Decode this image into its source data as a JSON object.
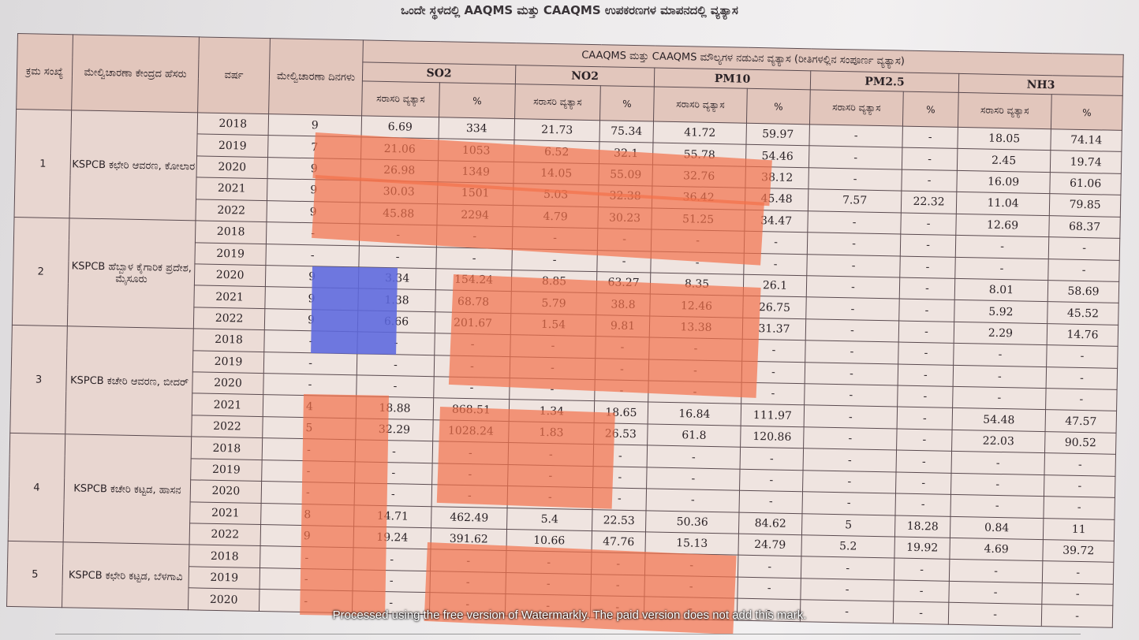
{
  "title": "ಒಂದೇ ಸ್ಥಳದಲ್ಲಿ AAQMS ಮತ್ತು CAAQMS ಉಪಕರಣಗಳ ಮಾಪನದಲ್ಲಿ ವ್ಯತ್ಯಾಸ",
  "headers": {
    "sl_no": "ಕ್ರಮ ಸಂಖ್ಯೆ",
    "station_name": "ಮೇಲ್ವಿಚಾರಣಾ ಕೇಂದ್ರದ ಹೆಸರು",
    "year": "ವರ್ಷ",
    "monitoring_days": "ಮೇಲ್ವಿಚಾರಣಾ ದಿನಗಳು",
    "group": "CAAQMS ಮತ್ತು CAAQMS ಮೌಲ್ಯಗಳ ನಡುವಿನ ವ್ಯತ್ಯಾಸ (ರೀತಿಗಳಲ್ಲಿನ ಸಂಪೂರ್ಣ ವ್ಯತ್ಯಾಸ)",
    "pollutants": [
      "SO2",
      "NO2",
      "PM10",
      "PM2.5",
      "NH3"
    ],
    "avg_diff": "ಸರಾಸರಿ ವ್ಯತ್ಯಾಸ",
    "percent": "%"
  },
  "stations": [
    {
      "sl": "1",
      "name": "KSPCB ಕಛೇರಿ ಆವರಣ, ಕೋಲಾರ",
      "rows": [
        {
          "year": "2018",
          "days": "9",
          "so2": [
            "6.69",
            "334"
          ],
          "no2": [
            "21.73",
            "75.34"
          ],
          "pm10": [
            "41.72",
            "59.97"
          ],
          "pm25": [
            "-",
            "-"
          ],
          "nh3": [
            "18.05",
            "74.14"
          ]
        },
        {
          "year": "2019",
          "days": "7",
          "so2": [
            "21.06",
            "1053"
          ],
          "no2": [
            "6.52",
            "32.1"
          ],
          "pm10": [
            "55.78",
            "54.46"
          ],
          "pm25": [
            "-",
            "-"
          ],
          "nh3": [
            "2.45",
            "19.74"
          ]
        },
        {
          "year": "2020",
          "days": "9",
          "so2": [
            "26.98",
            "1349"
          ],
          "no2": [
            "14.05",
            "55.09"
          ],
          "pm10": [
            "32.76",
            "38.12"
          ],
          "pm25": [
            "-",
            "-"
          ],
          "nh3": [
            "16.09",
            "61.06"
          ]
        },
        {
          "year": "2021",
          "days": "9",
          "so2": [
            "30.03",
            "1501"
          ],
          "no2": [
            "5.03",
            "32.38"
          ],
          "pm10": [
            "36.42",
            "45.48"
          ],
          "pm25": [
            "7.57",
            "22.32"
          ],
          "nh3": [
            "11.04",
            "79.85"
          ]
        },
        {
          "year": "2022",
          "days": "9",
          "so2": [
            "45.88",
            "2294"
          ],
          "no2": [
            "4.79",
            "30.23"
          ],
          "pm10": [
            "51.25",
            "34.47"
          ],
          "pm25": [
            "-",
            "-"
          ],
          "nh3": [
            "12.69",
            "68.37"
          ]
        }
      ]
    },
    {
      "sl": "2",
      "name": "KSPCB ಹೆಬ್ಬಾಳ ಕೈಗಾರಿಕ ಪ್ರದೇಶ, ಮೈಸೂರು",
      "rows": [
        {
          "year": "2018",
          "days": "-",
          "so2": [
            "-",
            "-"
          ],
          "no2": [
            "-",
            "-"
          ],
          "pm10": [
            "-",
            "-"
          ],
          "pm25": [
            "-",
            "-"
          ],
          "nh3": [
            "-",
            "-"
          ]
        },
        {
          "year": "2019",
          "days": "-",
          "so2": [
            "-",
            "-"
          ],
          "no2": [
            "-",
            "-"
          ],
          "pm10": [
            "-",
            "-"
          ],
          "pm25": [
            "-",
            "-"
          ],
          "nh3": [
            "-",
            "-"
          ]
        },
        {
          "year": "2020",
          "days": "9",
          "so2": [
            "3.34",
            "154.24"
          ],
          "no2": [
            "8.85",
            "63.27"
          ],
          "pm10": [
            "8.35",
            "26.1"
          ],
          "pm25": [
            "-",
            "-"
          ],
          "nh3": [
            "8.01",
            "58.69"
          ]
        },
        {
          "year": "2021",
          "days": "9",
          "so2": [
            "1.38",
            "68.78"
          ],
          "no2": [
            "5.79",
            "38.8"
          ],
          "pm10": [
            "12.46",
            "26.75"
          ],
          "pm25": [
            "-",
            "-"
          ],
          "nh3": [
            "5.92",
            "45.52"
          ]
        },
        {
          "year": "2022",
          "days": "9",
          "so2": [
            "6.66",
            "201.67"
          ],
          "no2": [
            "1.54",
            "9.81"
          ],
          "pm10": [
            "13.38",
            "31.37"
          ],
          "pm25": [
            "-",
            "-"
          ],
          "nh3": [
            "2.29",
            "14.76"
          ]
        }
      ]
    },
    {
      "sl": "3",
      "name": "KSPCB ಕಚೇರಿ ಆವರಣ, ಬೀದರ್",
      "rows": [
        {
          "year": "2018",
          "days": "-",
          "so2": [
            "-",
            "-"
          ],
          "no2": [
            "-",
            "-"
          ],
          "pm10": [
            "-",
            "-"
          ],
          "pm25": [
            "-",
            "-"
          ],
          "nh3": [
            "-",
            "-"
          ]
        },
        {
          "year": "2019",
          "days": "-",
          "so2": [
            "-",
            "-"
          ],
          "no2": [
            "-",
            "-"
          ],
          "pm10": [
            "-",
            "-"
          ],
          "pm25": [
            "-",
            "-"
          ],
          "nh3": [
            "-",
            "-"
          ]
        },
        {
          "year": "2020",
          "days": "-",
          "so2": [
            "-",
            "-"
          ],
          "no2": [
            "-",
            "-"
          ],
          "pm10": [
            "-",
            "-"
          ],
          "pm25": [
            "-",
            "-"
          ],
          "nh3": [
            "-",
            "-"
          ]
        },
        {
          "year": "2021",
          "days": "4",
          "so2": [
            "18.88",
            "868.51"
          ],
          "no2": [
            "1.34",
            "18.65"
          ],
          "pm10": [
            "16.84",
            "111.97"
          ],
          "pm25": [
            "-",
            "-"
          ],
          "nh3": [
            "54.48",
            "47.57"
          ]
        },
        {
          "year": "2022",
          "days": "5",
          "so2": [
            "32.29",
            "1028.24"
          ],
          "no2": [
            "1.83",
            "26.53"
          ],
          "pm10": [
            "61.8",
            "120.86"
          ],
          "pm25": [
            "-",
            "-"
          ],
          "nh3": [
            "22.03",
            "90.52"
          ]
        }
      ]
    },
    {
      "sl": "4",
      "name": "KSPCB ಕಚೇರಿ ಕಟ್ಟಡ, ಹಾಸನ",
      "rows": [
        {
          "year": "2018",
          "days": "-",
          "so2": [
            "-",
            "-"
          ],
          "no2": [
            "-",
            "-"
          ],
          "pm10": [
            "-",
            "-"
          ],
          "pm25": [
            "-",
            "-"
          ],
          "nh3": [
            "-",
            "-"
          ]
        },
        {
          "year": "2019",
          "days": "-",
          "so2": [
            "-",
            "-"
          ],
          "no2": [
            "-",
            "-"
          ],
          "pm10": [
            "-",
            "-"
          ],
          "pm25": [
            "-",
            "-"
          ],
          "nh3": [
            "-",
            "-"
          ]
        },
        {
          "year": "2020",
          "days": "-",
          "so2": [
            "-",
            "-"
          ],
          "no2": [
            "-",
            "-"
          ],
          "pm10": [
            "-",
            "-"
          ],
          "pm25": [
            "-",
            "-"
          ],
          "nh3": [
            "-",
            "-"
          ]
        },
        {
          "year": "2021",
          "days": "8",
          "so2": [
            "14.71",
            "462.49"
          ],
          "no2": [
            "5.4",
            "22.53"
          ],
          "pm10": [
            "50.36",
            "84.62"
          ],
          "pm25": [
            "5",
            "18.28"
          ],
          "nh3": [
            "0.84",
            "11"
          ]
        },
        {
          "year": "2022",
          "days": "9",
          "so2": [
            "19.24",
            "391.62"
          ],
          "no2": [
            "10.66",
            "47.76"
          ],
          "pm10": [
            "15.13",
            "24.79"
          ],
          "pm25": [
            "5.2",
            "19.92"
          ],
          "nh3": [
            "4.69",
            "39.72"
          ]
        }
      ]
    },
    {
      "sl": "5",
      "name": "KSPCB ಕಛೇರಿ ಕಟ್ಟಡ, ಬೆಳಗಾವಿ",
      "rows": [
        {
          "year": "2018",
          "days": "-",
          "so2": [
            "-",
            "-"
          ],
          "no2": [
            "-",
            "-"
          ],
          "pm10": [
            "-",
            "-"
          ],
          "pm25": [
            "-",
            "-"
          ],
          "nh3": [
            "-",
            "-"
          ]
        },
        {
          "year": "2019",
          "days": "-",
          "so2": [
            "-",
            "-"
          ],
          "no2": [
            "-",
            "-"
          ],
          "pm10": [
            "-",
            "-"
          ],
          "pm25": [
            "-",
            "-"
          ],
          "nh3": [
            "-",
            "-"
          ]
        },
        {
          "year": "2020",
          "days": "-",
          "so2": [
            "-",
            "-"
          ],
          "no2": [
            "-",
            "-"
          ],
          "pm10": [
            "-",
            "-"
          ],
          "pm25": [
            "-",
            "-"
          ],
          "nh3": [
            "-",
            "-"
          ]
        }
      ]
    }
  ],
  "watermark": "Processed using the free version of Watermarkly. The paid version does not add this mark.",
  "colors": {
    "highlight_orange": "#f4704a",
    "highlight_blue": "#5c68de"
  }
}
